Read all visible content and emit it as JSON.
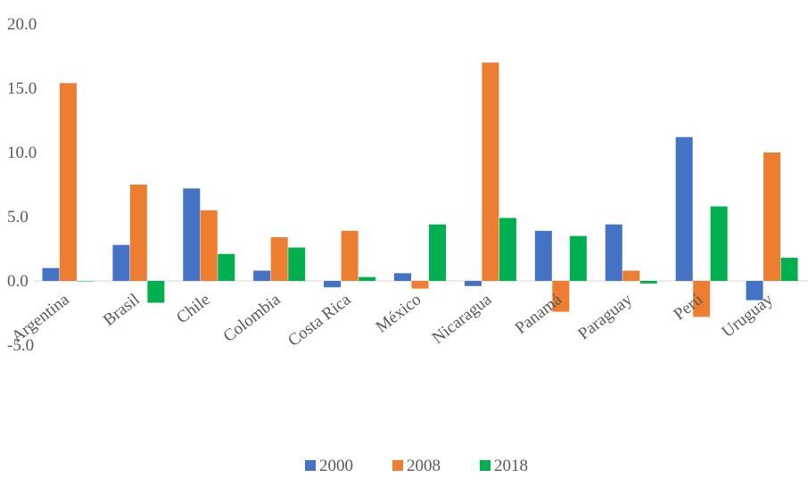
{
  "chart_data": {
    "type": "bar",
    "title": "",
    "xlabel": "",
    "ylabel": "",
    "categories": [
      "Argentina",
      "Brasil",
      "Chile",
      "Colombia",
      "Costa Rica",
      "México",
      "Nicaragua",
      "Panamá",
      "Paraguay",
      "Perú",
      "Uruguay"
    ],
    "series": [
      {
        "name": "2000",
        "color": "#4472C4",
        "values": [
          1.0,
          2.8,
          7.2,
          0.8,
          -0.5,
          0.6,
          -0.4,
          3.9,
          4.4,
          11.2,
          -1.5
        ]
      },
      {
        "name": "2008",
        "color": "#ED7D31",
        "values": [
          15.4,
          7.5,
          5.5,
          3.4,
          3.9,
          -0.6,
          17.0,
          -2.4,
          0.8,
          -2.8,
          10.0
        ]
      },
      {
        "name": "2018",
        "color": "#00B050",
        "values": [
          0.0,
          -1.7,
          2.1,
          2.6,
          0.3,
          4.4,
          4.9,
          3.5,
          -0.2,
          5.8,
          1.8
        ]
      }
    ],
    "yticks": [
      "-5.0",
      "0.0",
      "5.0",
      "10.0",
      "15.0",
      "20.0"
    ],
    "ylim": [
      -5,
      20
    ],
    "grid": false,
    "legend_position": "bottom"
  }
}
